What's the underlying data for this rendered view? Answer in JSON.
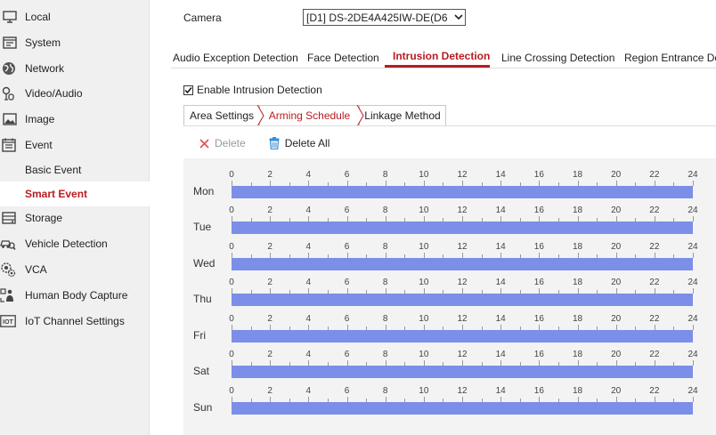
{
  "sidebar": {
    "items": [
      {
        "label": "Local",
        "icon": "monitor-icon",
        "name": "sidebar-item-local",
        "sub": false,
        "active": false
      },
      {
        "label": "System",
        "icon": "system-icon",
        "name": "sidebar-item-system",
        "sub": false,
        "active": false
      },
      {
        "label": "Network",
        "icon": "globe-icon",
        "name": "sidebar-item-network",
        "sub": false,
        "active": false
      },
      {
        "label": "Video/Audio",
        "icon": "video-audio-icon",
        "name": "sidebar-item-video-audio",
        "sub": false,
        "active": false
      },
      {
        "label": "Image",
        "icon": "image-icon",
        "name": "sidebar-item-image",
        "sub": false,
        "active": false
      },
      {
        "label": "Event",
        "icon": "calendar-icon",
        "name": "sidebar-item-event",
        "sub": false,
        "active": false
      },
      {
        "label": "Basic Event",
        "icon": "",
        "name": "sidebar-item-basic-event",
        "sub": true,
        "active": false
      },
      {
        "label": "Smart Event",
        "icon": "",
        "name": "sidebar-item-smart-event",
        "sub": true,
        "active": true
      },
      {
        "label": "Storage",
        "icon": "storage-icon",
        "name": "sidebar-item-storage",
        "sub": false,
        "active": false
      },
      {
        "label": "Vehicle Detection",
        "icon": "vehicle-search-icon",
        "name": "sidebar-item-vehicle-detection",
        "sub": false,
        "active": false
      },
      {
        "label": "VCA",
        "icon": "vca-gear-icon",
        "name": "sidebar-item-vca",
        "sub": false,
        "active": false
      },
      {
        "label": "Human Body Capture",
        "icon": "human-body-icon",
        "name": "sidebar-item-human-body-capture",
        "sub": false,
        "active": false
      },
      {
        "label": "IoT Channel Settings",
        "icon": "iot-icon",
        "name": "sidebar-item-iot-channel-settings",
        "sub": false,
        "active": false
      }
    ],
    "active_color": "#b81c22"
  },
  "camera": {
    "label": "Camera",
    "selected": "[D1] DS-2DE4A425IW-DE(D6"
  },
  "tabs": [
    {
      "label": "Audio Exception Detection",
      "active": false
    },
    {
      "label": "Face Detection",
      "active": false
    },
    {
      "label": "Intrusion Detection",
      "active": true
    },
    {
      "label": "Line Crossing Detection",
      "active": false
    },
    {
      "label": "Region Entrance Dete",
      "active": false
    }
  ],
  "enable": {
    "label": "Enable Intrusion Detection",
    "checked": true
  },
  "subtabs": [
    {
      "label": "Area Settings",
      "active": false
    },
    {
      "label": "Arming Schedule",
      "active": true
    },
    {
      "label": "Linkage Method",
      "active": false
    }
  ],
  "toolbar": {
    "delete_label": "Delete",
    "delete_all_label": "Delete All"
  },
  "schedule": {
    "tick_labels": [
      "0",
      "2",
      "4",
      "6",
      "8",
      "10",
      "12",
      "14",
      "16",
      "18",
      "20",
      "22",
      "24"
    ],
    "days": [
      {
        "label": "Mon",
        "start_hour": 0,
        "end_hour": 24
      },
      {
        "label": "Tue",
        "start_hour": 0,
        "end_hour": 24
      },
      {
        "label": "Wed",
        "start_hour": 0,
        "end_hour": 24
      },
      {
        "label": "Thu",
        "start_hour": 0,
        "end_hour": 24
      },
      {
        "label": "Fri",
        "start_hour": 0,
        "end_hour": 24
      },
      {
        "label": "Sat",
        "start_hour": 0,
        "end_hour": 24
      },
      {
        "label": "Sun",
        "start_hour": 0,
        "end_hour": 24
      }
    ],
    "bar_color": "#7b8ee8"
  }
}
